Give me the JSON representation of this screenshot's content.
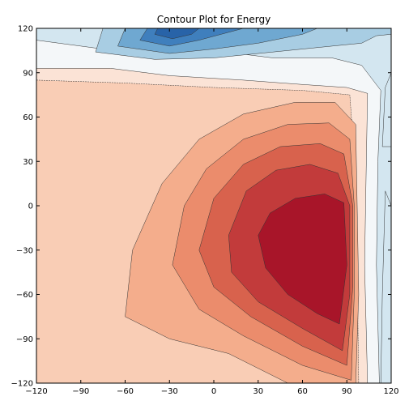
{
  "chart_data": {
    "type": "contour",
    "title": "Contour Plot for Energy",
    "xlabel": "",
    "ylabel": "",
    "xlim": [
      -120,
      120
    ],
    "ylim": [
      -120,
      120
    ],
    "x_ticks": [
      "−120",
      "−90",
      "−60",
      "−30",
      "0",
      "30",
      "60",
      "90",
      "120"
    ],
    "y_ticks": [
      "120",
      "90",
      "60",
      "30",
      "0",
      "−30",
      "−60",
      "−90",
      "−120"
    ],
    "x_tick_values": [
      -120,
      -90,
      -60,
      -30,
      0,
      30,
      60,
      90,
      120
    ],
    "y_tick_values": [
      120,
      90,
      60,
      30,
      0,
      -30,
      -60,
      -90,
      -120
    ],
    "colormap": "RdBu_r",
    "grid": false,
    "red_peak": {
      "x": 68,
      "y": -40
    },
    "blue_peak": {
      "x": -28,
      "y": 118
    },
    "levels": [
      {
        "color": "#fbe3d6"
      },
      {
        "color": "#f9cdb5"
      },
      {
        "color": "#f4ad8c"
      },
      {
        "color": "#eb8c6c"
      },
      {
        "color": "#d8624d"
      },
      {
        "color": "#c23b3b"
      },
      {
        "color": "#a81529"
      }
    ],
    "blue_levels": [
      {
        "color": "#f4f7f9"
      },
      {
        "color": "#d3e6f0"
      },
      {
        "color": "#a8cde3"
      },
      {
        "color": "#6fa8d1"
      },
      {
        "color": "#3f7fbd"
      },
      {
        "color": "#2863a8"
      }
    ]
  }
}
